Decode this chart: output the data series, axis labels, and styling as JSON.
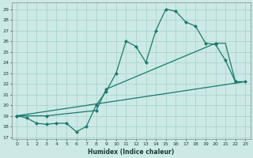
{
  "xlabel": "Humidex (Indice chaleur)",
  "ylabel": "",
  "bg_color": "#cce9e6",
  "grid_color": "#aad4d0",
  "line_color": "#1a7a6a",
  "xlim": [
    -0.5,
    23.5
  ],
  "ylim": [
    16.8,
    29.6
  ],
  "yticks": [
    17,
    18,
    19,
    20,
    21,
    22,
    23,
    24,
    25,
    26,
    27,
    28,
    29
  ],
  "xticks": [
    0,
    1,
    2,
    3,
    4,
    5,
    6,
    7,
    8,
    9,
    10,
    11,
    12,
    13,
    14,
    15,
    16,
    17,
    18,
    19,
    20,
    21,
    22,
    23
  ],
  "line1_x": [
    0,
    1,
    2,
    3,
    4,
    5,
    6,
    7,
    8,
    9,
    10,
    11,
    12,
    13,
    14,
    15,
    16,
    17,
    18,
    19,
    20,
    21,
    22
  ],
  "line1_y": [
    19.0,
    18.8,
    18.3,
    18.2,
    18.3,
    18.3,
    17.5,
    18.0,
    20.0,
    21.3,
    23.0,
    26.0,
    25.5,
    24.0,
    27.0,
    29.0,
    28.8,
    27.8,
    27.4,
    25.8,
    25.7,
    24.2,
    22.2
  ],
  "line2_x": [
    0,
    3,
    8,
    9,
    20,
    21,
    22,
    23
  ],
  "line2_y": [
    19.0,
    19.0,
    19.5,
    21.5,
    25.8,
    25.8,
    22.2,
    22.2
  ],
  "line2_marked_x": [
    0,
    3,
    8,
    9,
    20,
    22,
    23
  ],
  "line2_marked_y": [
    19.0,
    19.0,
    19.5,
    21.5,
    25.8,
    22.2,
    22.2
  ],
  "line3_x": [
    0,
    23
  ],
  "line3_y": [
    19.0,
    22.2
  ]
}
